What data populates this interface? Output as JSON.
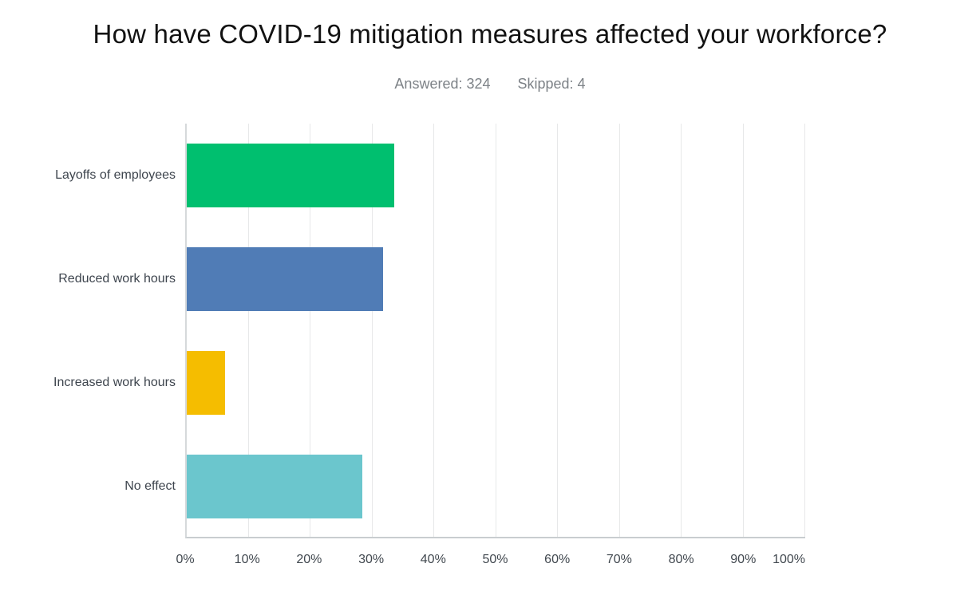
{
  "title": "How have COVID-19 mitigation measures affected your workforce?",
  "stats": {
    "answered": "Answered: 324",
    "skipped": "Skipped: 4"
  },
  "chart_data": {
    "type": "bar",
    "orientation": "horizontal",
    "title": "How have COVID-19 mitigation measures affected your workforce?",
    "categories": [
      "Layoffs of employees",
      "Reduced work hours",
      "Increased work hours",
      "No effect"
    ],
    "values": [
      33.6,
      31.8,
      6.2,
      28.4
    ],
    "unit": "%",
    "bar_colors": [
      "#00BF6F",
      "#507CB6",
      "#F5BD00",
      "#6BC6CD"
    ],
    "x_ticks": [
      "0%",
      "10%",
      "20%",
      "30%",
      "40%",
      "50%",
      "60%",
      "70%",
      "80%",
      "90%",
      "100%"
    ],
    "x_tick_values": [
      0,
      10,
      20,
      30,
      40,
      50,
      60,
      70,
      80,
      90,
      100
    ],
    "xlim": [
      0,
      100
    ],
    "xlabel": "",
    "ylabel": "",
    "grid": true,
    "legend": false
  },
  "theme": {
    "background": "#ffffff",
    "title_color": "#121212",
    "stats_color": "#7d8287",
    "label_color": "#3e454e",
    "tick_color": "#41484f",
    "gridline_color": "#e7e8e9",
    "axis_color": "#c9cdd0"
  }
}
